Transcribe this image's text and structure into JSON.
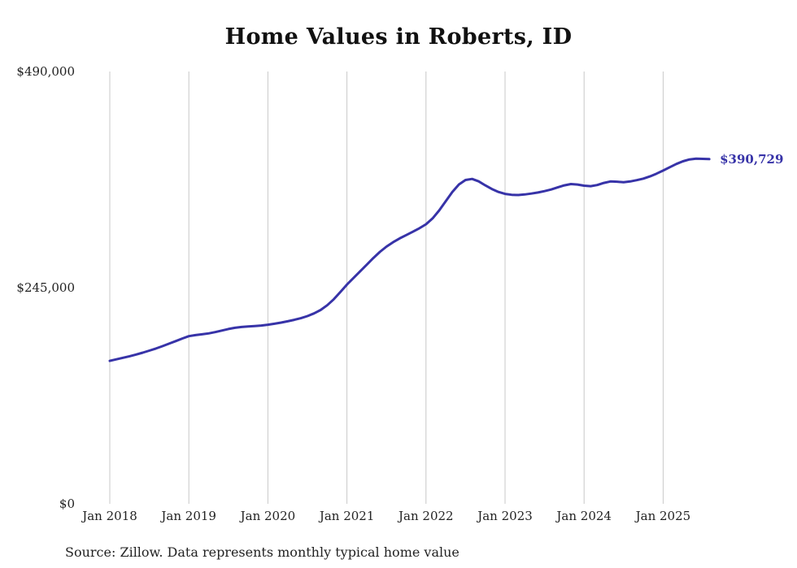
{
  "title": "Home Values in Roberts, ID",
  "source_note": "Source: Zillow. Data represents monthly typical home value",
  "end_label": "$390,729",
  "colors": {
    "line": "#3733a8",
    "grid": "#c8c8c8",
    "axis_text": "#222222",
    "title_text": "#111111"
  },
  "chart_data": {
    "type": "line",
    "title": "Home Values in Roberts, ID",
    "ylabel": "",
    "xlabel": "",
    "ylim": [
      0,
      490000
    ],
    "grid": "vertical",
    "legend": "none",
    "start_month": "2018-01",
    "end_month": "2025-08",
    "x_tick_labels": [
      "Jan 2018",
      "Jan 2019",
      "Jan 2020",
      "Jan 2021",
      "Jan 2022",
      "Jan 2023",
      "Jan 2024",
      "Jan 2025"
    ],
    "x_tick_month_indices": [
      0,
      12,
      24,
      36,
      48,
      60,
      72,
      84
    ],
    "y_ticks": [
      {
        "value": 0,
        "label": "$0"
      },
      {
        "value": 245000,
        "label": "$245,000"
      },
      {
        "value": 490000,
        "label": "$490,000"
      }
    ],
    "series": [
      {
        "name": "Monthly typical home value",
        "values": [
          162000,
          163800,
          165500,
          167300,
          169200,
          171300,
          173600,
          176000,
          178700,
          181500,
          184400,
          187300,
          190000,
          191200,
          192100,
          193100,
          194600,
          196400,
          198100,
          199500,
          200400,
          201000,
          201500,
          202100,
          203000,
          204100,
          205400,
          206900,
          208500,
          210400,
          212800,
          215800,
          219700,
          225000,
          231800,
          240000,
          248500,
          256000,
          263500,
          271000,
          278500,
          285500,
          291500,
          296500,
          300800,
          304600,
          308400,
          312300,
          316800,
          323500,
          332500,
          343000,
          353500,
          362000,
          367000,
          368200,
          365500,
          361000,
          356800,
          353500,
          351300,
          350300,
          350000,
          350600,
          351700,
          352900,
          354400,
          356300,
          358700,
          361000,
          362400,
          361900,
          360600,
          360000,
          361300,
          363700,
          365400,
          365100,
          364500,
          365400,
          366900,
          368600,
          371100,
          374200,
          377700,
          381500,
          385200,
          388200,
          390300,
          391200,
          391000,
          390729
        ]
      }
    ],
    "annotation": "$390,729"
  }
}
